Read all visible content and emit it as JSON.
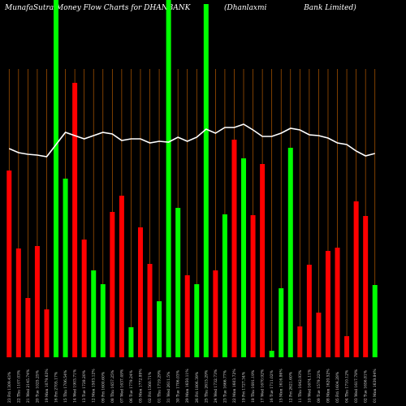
{
  "chart_data": {
    "type": "bar",
    "title": "MunafaSutra  Money Flow  Charts for DHANBANK",
    "subtitle": "(Dhanlaxmi                Bank Limited)",
    "categories": [
      "23 Fri 1309.43%",
      "22 Thu 1107.03%",
      "21 Wed 2145.74%",
      "20 Tue 1025.25%",
      "19 Mon 1079.63%",
      "16 Fri 2705.17%",
      "15 Thu 1706.54%",
      "14 Wed 1903.71%",
      "13 Tue 1728.20%",
      "12 Mon 1503.12%",
      "09 Fri 1600.60%",
      "08 Thu 1657.25%",
      "07 Wed 1637.49%",
      "06 Tue 1779.24%",
      "05 Mon 1772.89%",
      "02 Fri 1560.71%",
      "01 Thu 1719.29%",
      "31 Wed 2611.5%",
      "30 Tue 1706.03%",
      "29 Mon 1650.11%",
      "26 Fri 1806.39%",
      "25 Thu 2615.29%",
      "24 Wed 1732.73%",
      "23 Tue 1666.77%",
      "22 Mon 1603.72%",
      "19 Fri 1727.34%",
      "18 Thu 1691.19%",
      "17 Wed 1670.92%",
      "16 Tue 1711.02%",
      "15 Mon 1616.86%",
      "12 Fri 2621.60%",
      "11 Thu 1642.93%",
      "10 Wed 1674.11%",
      "09 Tue 1579.22%",
      "08 Mon 1620.52%",
      "05 Fri 1604.28%",
      "04 Thu 1710.12%",
      "03 Wed 1617.78%",
      "02 Tue 1656.81%",
      "01 Mon 1639.84%"
    ],
    "values": [
      230,
      134,
      73,
      137,
      59,
      460,
      220,
      338,
      145,
      107,
      90,
      179,
      199,
      37,
      160,
      115,
      69,
      460,
      184,
      101,
      90,
      435,
      107,
      176,
      268,
      245,
      175,
      238,
      8,
      85,
      258,
      38,
      114,
      55,
      131,
      135,
      26,
      192,
      174,
      89
    ],
    "bar_colors": [
      "#ff0000",
      "#ff0000",
      "#ff0000",
      "#ff0000",
      "#ff0000",
      "#00ff00",
      "#00ff00",
      "#ff0000",
      "#ff0000",
      "#00ff00",
      "#00ff00",
      "#ff0000",
      "#ff0000",
      "#00ff00",
      "#ff0000",
      "#ff0000",
      "#00ff00",
      "#00ff00",
      "#00ff00",
      "#ff0000",
      "#00ff00",
      "#00ff00",
      "#ff0000",
      "#00ff00",
      "#ff0000",
      "#00ff00",
      "#ff0000",
      "#ff0000",
      "#00ff00",
      "#00ff00",
      "#00ff00",
      "#ff0000",
      "#ff0000",
      "#ff0000",
      "#ff0000",
      "#ff0000",
      "#ff0000",
      "#ff0000",
      "#ff0000",
      "#00ff00"
    ],
    "line": {
      "color": "#ffffff",
      "values": [
        257,
        252,
        250,
        249,
        247,
        262,
        277,
        273,
        269,
        273,
        277,
        275,
        267,
        269,
        269,
        264,
        266,
        265,
        271,
        266,
        271,
        281,
        276,
        283,
        283,
        287,
        280,
        272,
        272,
        276,
        282,
        280,
        274,
        273,
        270,
        264,
        262,
        254,
        248,
        251
      ]
    },
    "guide_color": "#b35900",
    "ylim": [
      0,
      440
    ]
  }
}
